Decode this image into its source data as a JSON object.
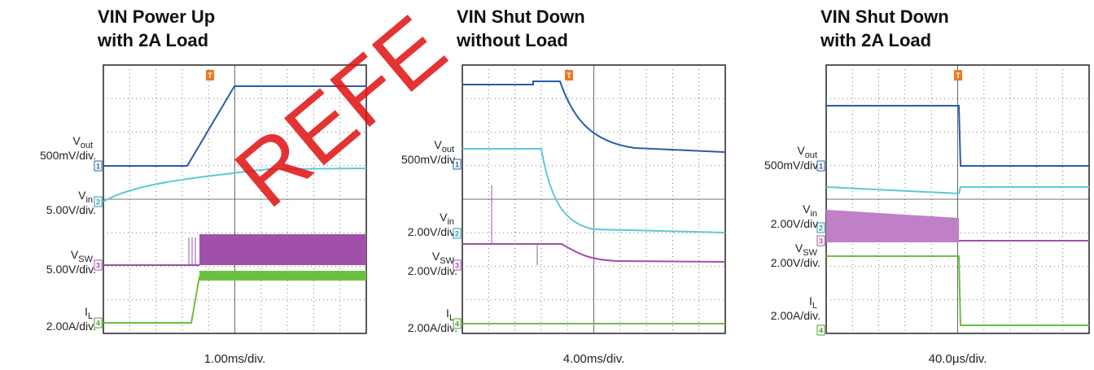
{
  "watermark": "REFE",
  "panels": [
    {
      "title": [
        "VIN  Power Up",
        "with 2A Load"
      ],
      "trigger": "T",
      "timebase": "1.00ms/div.",
      "channels": [
        {
          "symbol": "V",
          "subscript": "out",
          "scale": "500mV/div.",
          "marker": "1"
        },
        {
          "symbol": "V",
          "subscript": "in",
          "scale": "5.00V/div.",
          "marker": "2"
        },
        {
          "symbol": "V",
          "subscript": "SW",
          "scale": "5.00V/div.",
          "marker": "3"
        },
        {
          "symbol": "I",
          "subscript": "L",
          "scale": "2.00A/div.",
          "marker": "4"
        }
      ]
    },
    {
      "title": [
        "VIN Shut Down",
        "without Load"
      ],
      "trigger": "T",
      "timebase": "4.00ms/div.",
      "channels": [
        {
          "symbol": "V",
          "subscript": "out",
          "scale": "500mV/div.",
          "marker": "1"
        },
        {
          "symbol": "V",
          "subscript": "in",
          "scale": "2.00V/div.",
          "marker": "2"
        },
        {
          "symbol": "V",
          "subscript": "SW",
          "scale": "2.00V/div.",
          "marker": "3"
        },
        {
          "symbol": "I",
          "subscript": "L",
          "scale": "2.00A/div.",
          "marker": "4"
        }
      ]
    },
    {
      "title": [
        "VIN Shut Down",
        "with 2A Load"
      ],
      "trigger": "T",
      "timebase": "40.0μs/div.",
      "channels": [
        {
          "symbol": "V",
          "subscript": "out",
          "scale": "500mV/div.",
          "marker": "1"
        },
        {
          "symbol": "V",
          "subscript": "in",
          "scale": "2.00V/div.",
          "marker": "2"
        },
        {
          "symbol": "V",
          "subscript": "SW",
          "scale": "2.00V/div.",
          "marker": "3"
        },
        {
          "symbol": "I",
          "subscript": "L",
          "scale": "2.00A/div.",
          "marker": "4"
        }
      ]
    }
  ]
}
